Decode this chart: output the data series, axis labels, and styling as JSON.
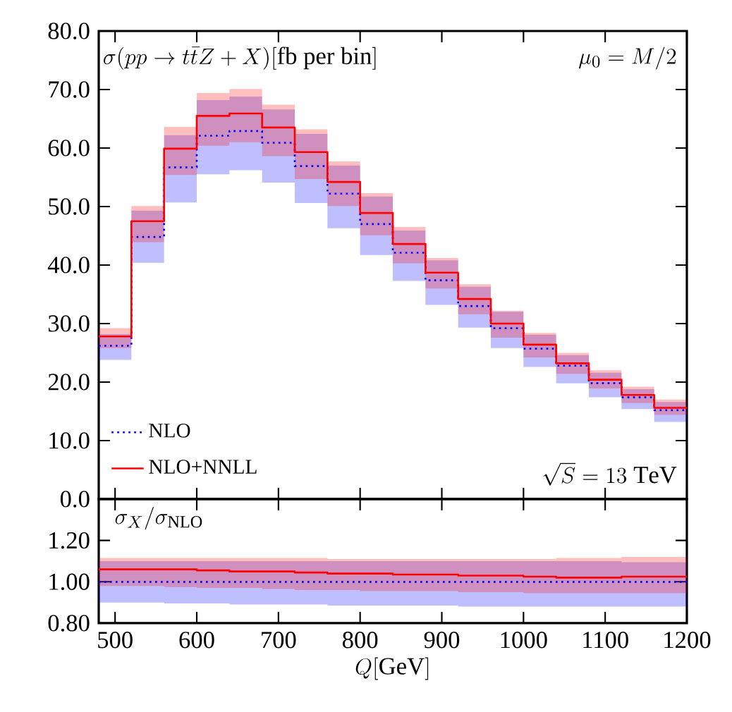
{
  "chart_data": [
    {
      "type": "step",
      "title": "\\sigma(pp\\to t\\bar{t}Z+X)[\\mathrm{fb\\ per\\ bin}]",
      "annotations": [
        "\\mu_0=M/2",
        "\\sqrt{S}=13\\ \\mathrm{TeV}"
      ],
      "x": [
        480,
        520,
        560,
        600,
        640,
        680,
        720,
        760,
        800,
        840,
        880,
        920,
        960,
        1000,
        1040,
        1080,
        1120,
        1160,
        1200
      ],
      "series": [
        {
          "name": "NLO",
          "color": "#0000ff",
          "line_style": "dotted",
          "values": [
            26.2,
            44.8,
            56.7,
            62.1,
            62.9,
            60.9,
            56.9,
            52.2,
            47.0,
            42.1,
            37.4,
            33.0,
            29.2,
            25.7,
            22.8,
            19.8,
            17.4,
            15.2,
            15.2
          ],
          "lower": [
            23.8,
            40.4,
            50.7,
            55.5,
            56.2,
            54.1,
            50.6,
            46.3,
            41.7,
            37.3,
            33.2,
            29.3,
            25.8,
            22.6,
            19.8,
            17.4,
            15.4,
            13.2,
            13.2
          ],
          "upper": [
            28.2,
            49.3,
            62.2,
            68.2,
            68.8,
            66.6,
            62.4,
            57.0,
            51.7,
            45.9,
            40.8,
            36.3,
            32.0,
            28.1,
            24.6,
            21.6,
            18.8,
            16.6,
            16.6
          ]
        },
        {
          "name": "NLO+NNLL",
          "color": "#ff0000",
          "line_style": "solid",
          "values": [
            27.8,
            47.5,
            59.9,
            65.5,
            65.9,
            63.5,
            59.3,
            54.2,
            48.9,
            43.6,
            38.7,
            34.2,
            30.0,
            26.4,
            23.2,
            20.4,
            17.8,
            15.6,
            15.6
          ],
          "lower": [
            25.8,
            43.9,
            55.4,
            60.4,
            61.0,
            58.6,
            54.7,
            50.1,
            45.1,
            40.3,
            36.0,
            31.6,
            27.6,
            24.2,
            21.4,
            18.9,
            16.4,
            14.4,
            14.4
          ],
          "upper": [
            29.2,
            50.1,
            63.6,
            69.4,
            70.1,
            67.4,
            63.2,
            57.7,
            52.3,
            46.5,
            41.2,
            36.7,
            32.2,
            28.4,
            25.0,
            22.0,
            19.2,
            17.0,
            17.0
          ]
        }
      ],
      "xlim": [
        480,
        1200
      ],
      "ylim": [
        0,
        80
      ],
      "xticks": [
        500,
        600,
        700,
        800,
        900,
        1000,
        1100,
        1200
      ],
      "yticks": [
        {
          "value": 0,
          "label": "0.0"
        },
        {
          "value": 10,
          "label": "10.0"
        },
        {
          "value": 20,
          "label": "20.0"
        },
        {
          "value": 30,
          "label": "30.0"
        },
        {
          "value": 40,
          "label": "40.0"
        },
        {
          "value": 50,
          "label": "50.0"
        },
        {
          "value": 60,
          "label": "60.0"
        },
        {
          "value": 70,
          "label": "70.0"
        },
        {
          "value": 80,
          "label": "80.0"
        }
      ],
      "tick_labels": "y",
      "legend": "bottom left",
      "grid": false
    },
    {
      "type": "step",
      "xlabel": "Q[\\mathrm{GeV}]",
      "annotations": [
        "\\sigma_X/\\sigma_{\\mathrm{NLO}}"
      ],
      "x": [
        480,
        520,
        560,
        600,
        640,
        680,
        720,
        760,
        800,
        840,
        880,
        920,
        960,
        1000,
        1040,
        1080,
        1120,
        1160,
        1200
      ],
      "series": [
        {
          "color": "#0000ff",
          "line_style": "dotted",
          "values": [
            1,
            1,
            1,
            1,
            1,
            1,
            1,
            1,
            1,
            1,
            1,
            1,
            1,
            1,
            1,
            1,
            1,
            1,
            1
          ],
          "lower": [
            0.9,
            0.9,
            0.895,
            0.895,
            0.89,
            0.89,
            0.89,
            0.885,
            0.885,
            0.885,
            0.885,
            0.88,
            0.88,
            0.88,
            0.88,
            0.88,
            0.88,
            0.88,
            0.88
          ],
          "upper": [
            1.1,
            1.1,
            1.1,
            1.1,
            1.1,
            1.1,
            1.1,
            1.1,
            1.1,
            1.1,
            1.1,
            1.1,
            1.1,
            1.1,
            1.1,
            1.1,
            1.095,
            1.095,
            1.095
          ]
        },
        {
          "color": "#ff0000",
          "line_style": "solid",
          "values": [
            1.06,
            1.06,
            1.06,
            1.055,
            1.05,
            1.05,
            1.045,
            1.04,
            1.04,
            1.035,
            1.035,
            1.03,
            1.03,
            1.025,
            1.02,
            1.02,
            1.025,
            1.025,
            1.025
          ],
          "lower": [
            0.98,
            0.98,
            0.975,
            0.97,
            0.97,
            0.965,
            0.96,
            0.96,
            0.955,
            0.955,
            0.955,
            0.95,
            0.95,
            0.945,
            0.945,
            0.945,
            0.945,
            0.945,
            0.945
          ],
          "upper": [
            1.115,
            1.115,
            1.115,
            1.115,
            1.115,
            1.115,
            1.115,
            1.11,
            1.11,
            1.11,
            1.11,
            1.11,
            1.11,
            1.11,
            1.115,
            1.115,
            1.12,
            1.12,
            1.12
          ]
        }
      ],
      "xlim": [
        480,
        1200
      ],
      "ylim": [
        0.8,
        1.4
      ],
      "xticks": [
        500,
        600,
        700,
        800,
        900,
        1000,
        1100,
        1200
      ],
      "yticks": [
        {
          "value": 0.8,
          "label": "0.80"
        },
        {
          "value": 1.0,
          "label": "1.00"
        },
        {
          "value": 1.2,
          "label": "1.20"
        }
      ],
      "grid": false
    }
  ]
}
